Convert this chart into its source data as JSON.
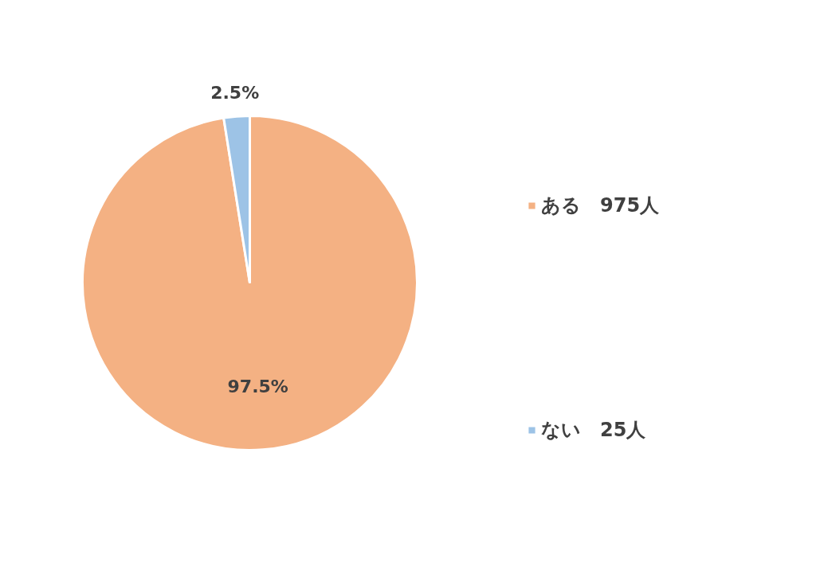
{
  "chart_data": {
    "type": "pie",
    "categories": [
      "ある　975人",
      "ない　25人"
    ],
    "values": [
      97.5,
      2.5
    ],
    "colors": [
      "#f4b183",
      "#9dc3e6"
    ],
    "value_labels": [
      "97.5%",
      "2.5%"
    ],
    "legend": "right"
  }
}
